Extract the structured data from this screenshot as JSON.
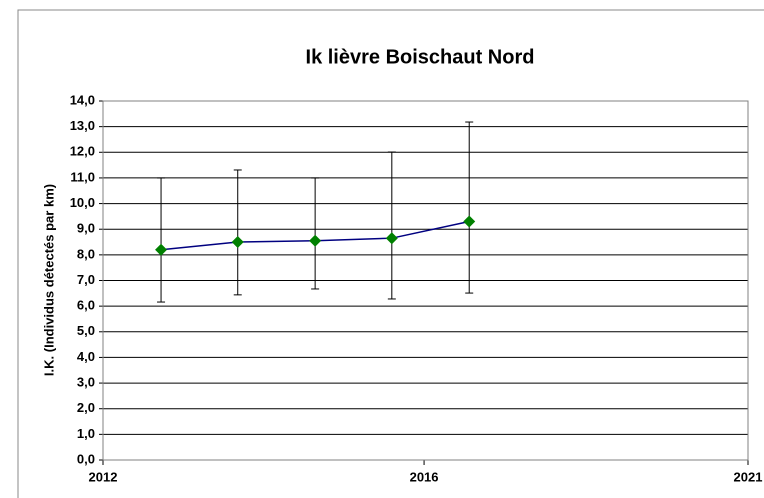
{
  "chart_data": {
    "type": "line",
    "title": "Ik lièvre Boischaut Nord",
    "ylabel": "I.K. (Individus détectés par km)",
    "x": [
      2012.81,
      2013.88,
      2014.96,
      2016.03,
      2017.11
    ],
    "series": [
      {
        "name": "Ik",
        "color": "#000080",
        "marker_color": "#008000",
        "values": [
          8.2,
          8.5,
          8.55,
          8.65,
          9.3
        ],
        "upper": [
          11.0,
          11.31,
          11.0,
          12.01,
          13.18
        ],
        "lower": [
          6.16,
          6.44,
          6.67,
          6.28,
          6.51
        ]
      }
    ],
    "xlim": [
      2012,
      2021
    ],
    "xticks": [
      2012,
      {
        "value": 2016.48,
        "label": "2016"
      },
      2021
    ],
    "ylim": [
      0,
      14
    ],
    "yticks": [
      {
        "value": 0,
        "label": "0,0"
      },
      {
        "value": 1,
        "label": "1,0"
      },
      {
        "value": 2,
        "label": "2,0"
      },
      {
        "value": 3,
        "label": "3,0"
      },
      {
        "value": 4,
        "label": "4,0"
      },
      {
        "value": 5,
        "label": "5,0"
      },
      {
        "value": 6,
        "label": "6,0"
      },
      {
        "value": 7,
        "label": "7,0"
      },
      {
        "value": 8,
        "label": "8,0"
      },
      {
        "value": 9,
        "label": "9,0"
      },
      {
        "value": 10,
        "label": "10,0"
      },
      {
        "value": 11,
        "label": "11,0"
      },
      {
        "value": 12,
        "label": "12,0"
      },
      {
        "value": 13,
        "label": "13,0"
      },
      {
        "value": 14,
        "label": "14,0"
      }
    ],
    "grid": true
  }
}
